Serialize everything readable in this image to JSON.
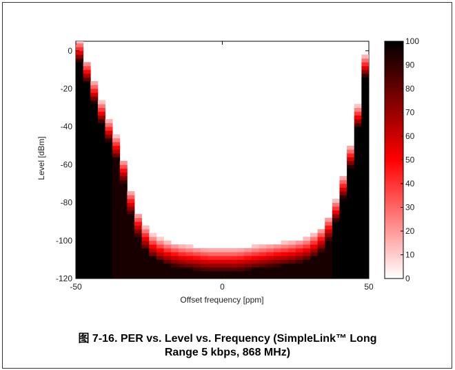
{
  "chart_data": {
    "type": "heatmap",
    "title": "",
    "xlabel": "Offset frequency [ppm]",
    "ylabel": "Level [dBm]",
    "xlim": [
      -50,
      50
    ],
    "ylim": [
      -120,
      5
    ],
    "xticks": [
      -50,
      0,
      50
    ],
    "yticks": [
      0,
      -20,
      -40,
      -60,
      -80,
      -100,
      -120
    ],
    "colorbar": {
      "min": 0,
      "max": 100,
      "ticks": [
        0,
        10,
        20,
        30,
        40,
        50,
        60,
        70,
        80,
        90,
        100
      ],
      "colormap": "white-red-black"
    },
    "value": "PER (%)",
    "boundary_columns": [
      {
        "x": -50,
        "pass_bottom": 5
      },
      {
        "x": -40,
        "pass_bottom": -38
      },
      {
        "x": -35,
        "pass_bottom": -55
      },
      {
        "x": -30,
        "pass_bottom": -88
      },
      {
        "x": -25,
        "pass_bottom": -102
      },
      {
        "x": -20,
        "pass_bottom": -106
      },
      {
        "x": -15,
        "pass_bottom": -108
      },
      {
        "x": -10,
        "pass_bottom": -109
      },
      {
        "x": -5,
        "pass_bottom": -110
      },
      {
        "x": 0,
        "pass_bottom": -110
      },
      {
        "x": 5,
        "pass_bottom": -110
      },
      {
        "x": 10,
        "pass_bottom": -109
      },
      {
        "x": 15,
        "pass_bottom": -108
      },
      {
        "x": 20,
        "pass_bottom": -107
      },
      {
        "x": 25,
        "pass_bottom": -106
      },
      {
        "x": 30,
        "pass_bottom": -104
      },
      {
        "x": 35,
        "pass_bottom": -98
      },
      {
        "x": 40,
        "pass_bottom": -80
      },
      {
        "x": 45,
        "pass_bottom": -48
      },
      {
        "x": 50,
        "pass_bottom": 5
      }
    ]
  },
  "caption": {
    "line1": "图 7-16. PER vs. Level vs. Frequency (SimpleLink™ Long",
    "line2": "Range 5 kbps, 868 MHz)"
  }
}
